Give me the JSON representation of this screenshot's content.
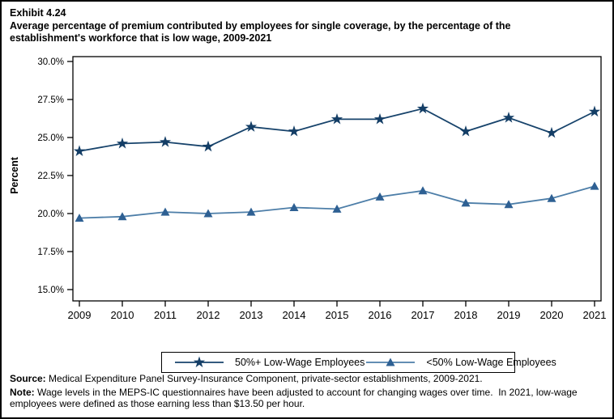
{
  "header": {
    "exhibit": "Exhibit 4.24",
    "title": "Average percentage of premium contributed by employees for single coverage, by the percentage of the establishment's workforce that is low wage, 2009-2021"
  },
  "chart_data": {
    "type": "line",
    "title": "Exhibit 4.24 Average percentage of premium contributed by employees for single coverage, by the percentage of the establishment's workforce that is low wage, 2009-2021",
    "x": [
      2009,
      2010,
      2011,
      2012,
      2013,
      2014,
      2015,
      2016,
      2017,
      2018,
      2019,
      2020,
      2021
    ],
    "series": [
      {
        "name": "50%+ Low-Wage Employees",
        "marker": "star",
        "line_color": "#17436B",
        "marker_color": "#143E66",
        "values": [
          24.1,
          24.6,
          24.7,
          24.4,
          25.7,
          25.4,
          26.2,
          26.2,
          26.9,
          25.4,
          26.3,
          25.3,
          26.7
        ]
      },
      {
        "name": "<50% Low-Wage Employees",
        "marker": "triangle",
        "line_color": "#4D7EA8",
        "marker_color": "#2E6093",
        "values": [
          19.7,
          19.8,
          20.1,
          20.0,
          20.1,
          20.4,
          20.3,
          21.1,
          21.5,
          20.7,
          20.6,
          21.0,
          21.8
        ]
      }
    ],
    "xlabel": "",
    "ylabel": "Percent",
    "ylim": [
      15.0,
      30.0
    ],
    "ytick_step": 2.5,
    "ytick_labels": [
      "15.0%",
      "17.5%",
      "20.0%",
      "22.5%",
      "25.0%",
      "27.5%",
      "30.0%"
    ],
    "grid": false,
    "legend_position": "bottom"
  },
  "footer": {
    "source_label": "Source:",
    "source_text": " Medical Expenditure Panel Survey-Insurance Component, private-sector establishments, 2009-2021.",
    "note_label": "Note:",
    "note_text": " Wage levels in the MEPS-IC questionnaires have been adjusted to account for changing wages over time.  In 2021, low-wage employees were defined as those earning less than $13.50 per hour."
  }
}
